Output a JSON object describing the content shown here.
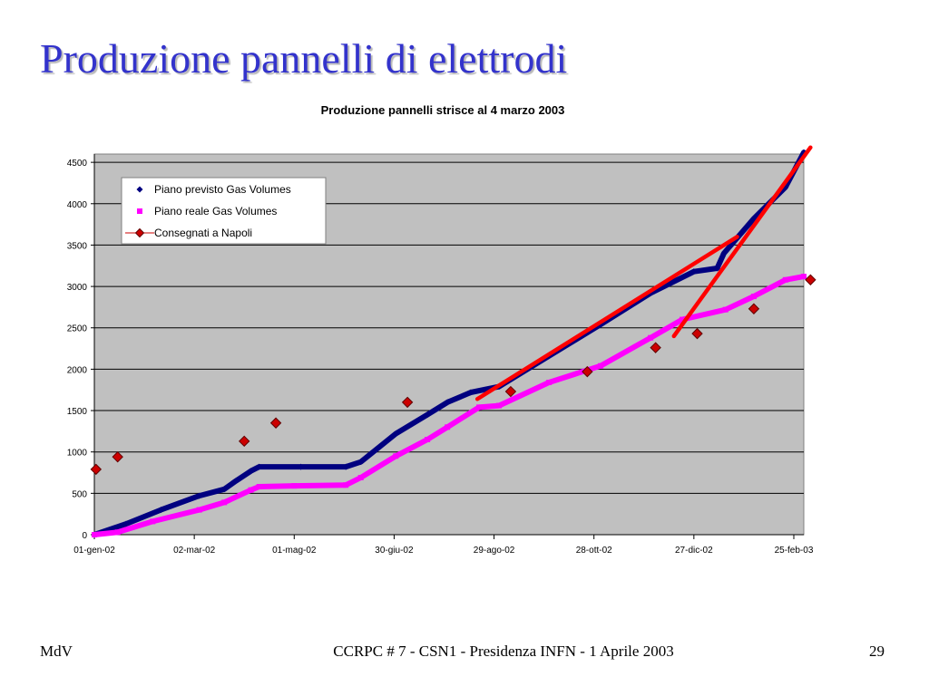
{
  "slide": {
    "title": "Produzione pannelli di elettrodi",
    "footer_left": "MdV",
    "footer_center": "CCRPC # 7 - CSN1 - Presidenza INFN - 1 Aprile 2003",
    "footer_right": "29"
  },
  "colors": {
    "title": "#3333cc",
    "plot_background": "#c0c0c0",
    "series_planned": "#000080",
    "series_real": "#ff00ff",
    "series_delivered": "#cc0000",
    "trend_lines": "#ff0000"
  },
  "chart_data": {
    "type": "line",
    "title": "Produzione pannelli strisce al 4 marzo 2003",
    "xlabel": "",
    "ylabel": "",
    "x_type": "date",
    "xlim": [
      "2002-01-01",
      "2003-03-03"
    ],
    "ylim": [
      0,
      4600
    ],
    "x_ticks": [
      "2002-01-01",
      "2002-03-02",
      "2002-05-01",
      "2002-06-30",
      "2002-08-29",
      "2002-10-28",
      "2002-12-27",
      "2003-02-25"
    ],
    "x_tick_labels": [
      "01-gen-02",
      "02-mar-02",
      "01-mag-02",
      "30-giu-02",
      "29-ago-02",
      "28-ott-02",
      "27-dic-02",
      "25-feb-03"
    ],
    "y_ticks": [
      0,
      500,
      1000,
      1500,
      2000,
      2500,
      3000,
      3500,
      4000,
      4500
    ],
    "grid": true,
    "legend_position": "top-left",
    "series": [
      {
        "name": "Piano previsto Gas Volumes",
        "style": "line-diamond",
        "x": [
          "2002-01-01",
          "2002-01-20",
          "2002-02-10",
          "2002-03-05",
          "2002-03-20",
          "2002-03-27",
          "2002-04-05",
          "2002-04-10",
          "2002-05-05",
          "2002-06-01",
          "2002-06-10",
          "2002-07-01",
          "2002-07-20",
          "2002-08-01",
          "2002-08-15",
          "2002-09-01",
          "2002-10-01",
          "2002-11-01",
          "2002-12-01",
          "2002-12-27",
          "2003-01-10",
          "2003-01-14",
          "2003-02-01",
          "2003-02-20",
          "2003-03-03"
        ],
        "y": [
          0,
          130,
          300,
          470,
          550,
          650,
          770,
          820,
          820,
          820,
          880,
          1220,
          1450,
          1600,
          1720,
          1790,
          2160,
          2540,
          2920,
          3180,
          3220,
          3400,
          3820,
          4200,
          4620
        ]
      },
      {
        "name": "Piano reale Gas Volumes",
        "style": "line-square",
        "x": [
          "2002-01-01",
          "2002-01-15",
          "2002-02-05",
          "2002-03-05",
          "2002-03-20",
          "2002-04-05",
          "2002-04-10",
          "2002-05-01",
          "2002-06-01",
          "2002-06-10",
          "2002-07-01",
          "2002-07-20",
          "2002-08-01",
          "2002-08-20",
          "2002-09-01",
          "2002-10-01",
          "2002-11-01",
          "2002-12-01",
          "2002-12-20",
          "2003-01-15",
          "2003-02-01",
          "2003-02-20",
          "2003-03-03"
        ],
        "y": [
          0,
          30,
          160,
          300,
          390,
          540,
          580,
          590,
          600,
          690,
          950,
          1150,
          1300,
          1540,
          1560,
          1840,
          2040,
          2380,
          2600,
          2720,
          2880,
          3080,
          3120
        ]
      },
      {
        "name": "Consegnati a Napoli",
        "style": "markers-diamond",
        "x": [
          "2002-01-02",
          "2002-01-15",
          "2002-04-01",
          "2002-04-20",
          "2002-07-08",
          "2002-09-08",
          "2002-10-24",
          "2002-12-04",
          "2002-12-29",
          "2003-02-01",
          "2003-03-07"
        ],
        "y": [
          790,
          940,
          1130,
          1350,
          1600,
          1730,
          1970,
          2260,
          2430,
          2730,
          3080
        ]
      }
    ],
    "trend_lines": [
      {
        "x": [
          "2002-08-19",
          "2003-01-22"
        ],
        "y": [
          1640,
          3600
        ]
      },
      {
        "x": [
          "2002-12-15",
          "2003-03-07"
        ],
        "y": [
          2400,
          4680
        ]
      }
    ]
  }
}
